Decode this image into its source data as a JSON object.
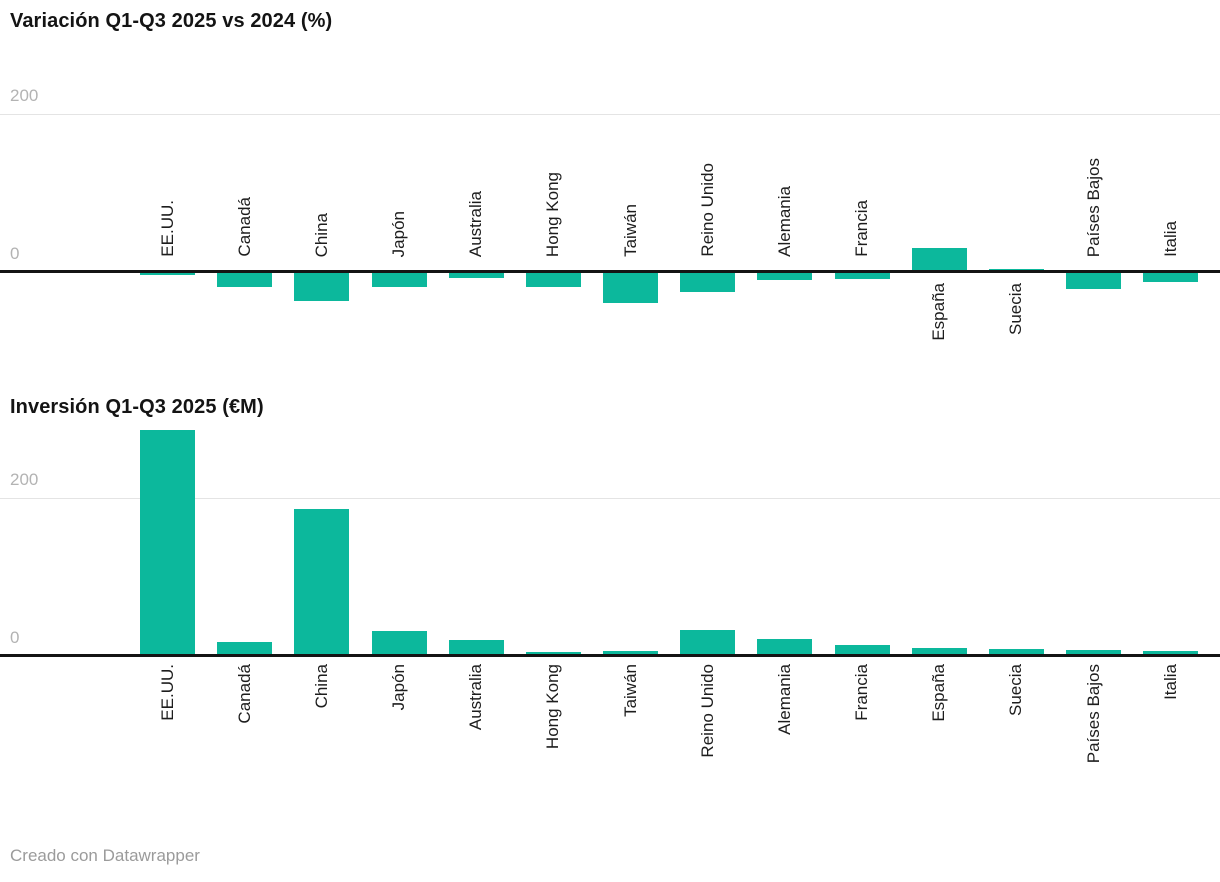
{
  "chart_data": [
    {
      "type": "bar",
      "title": "Variación Q1-Q3 2025 vs 2024 (%)",
      "ylabel": "",
      "xlabel": "",
      "unit": "%",
      "categories": [
        "EE.UU.",
        "Canadá",
        "China",
        "Japón",
        "Australia",
        "Hong Kong",
        "Taiwán",
        "Reino Unido",
        "Alemania",
        "Francia",
        "España",
        "Suecia",
        "Países Bajos",
        "Italia"
      ],
      "values": [
        -5,
        -20,
        -38,
        -20,
        -8,
        -20,
        -40,
        -26,
        -11,
        -9,
        30,
        3,
        -22,
        -14
      ],
      "yticks": [
        "200",
        "0"
      ],
      "ylim": [
        -45,
        200
      ],
      "grid": "single-line-at-200",
      "legend": "none",
      "label_rotation": "vertical-bottom-to-top"
    },
    {
      "type": "bar",
      "title": "Inversión Q1-Q3 2025 (€M)",
      "ylabel": "",
      "xlabel": "",
      "unit": "€M",
      "categories": [
        "EE.UU.",
        "Canadá",
        "China",
        "Japón",
        "Australia",
        "Hong Kong",
        "Taiwán",
        "Reino Unido",
        "Alemania",
        "Francia",
        "España",
        "Suecia",
        "Países Bajos",
        "Italia"
      ],
      "values": [
        287,
        17,
        187,
        31,
        20,
        5,
        6,
        33,
        21,
        13,
        10,
        8,
        7,
        6
      ],
      "yticks": [
        "200",
        "0"
      ],
      "ylim": [
        0,
        290
      ],
      "grid": "single-line-at-200",
      "legend": "none",
      "label_rotation": "vertical-bottom-to-top"
    }
  ],
  "footer": {
    "credit": "Creado con Datawrapper"
  },
  "colors": {
    "bar": "#0cb89c",
    "axis": "#141414",
    "gridline": "#e4e4e4",
    "tick_text": "#b3b3b3",
    "label_text": "#1d1d1d",
    "title_text": "#141414",
    "footer_text": "#9b9b9b",
    "background": "#ffffff"
  }
}
